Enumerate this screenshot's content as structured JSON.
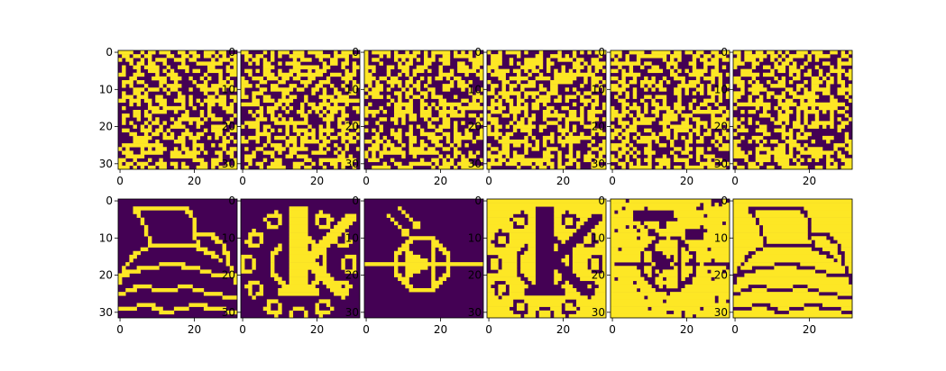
{
  "figure": {
    "colors": {
      "low": "#440154",
      "high": "#fde725",
      "axis": "#000000",
      "background": "#ffffff"
    }
  },
  "chart_data": {
    "type": "heatmap",
    "layout": {
      "rows": 2,
      "cols": 6
    },
    "grid": false,
    "image_size": [
      32,
      32
    ],
    "colormap": "viridis (binary)",
    "value_range": [
      0,
      1
    ],
    "x_ticks": [
      0,
      20
    ],
    "y_ticks": [
      0,
      10,
      20,
      30
    ],
    "x_tick_labels": [
      "0",
      "20"
    ],
    "y_tick_labels": [
      "0",
      "10",
      "20",
      "30"
    ],
    "panels": [
      {
        "row": 0,
        "col": 0,
        "kind": "noise",
        "seed": 11
      },
      {
        "row": 0,
        "col": 1,
        "kind": "noise",
        "seed": 23
      },
      {
        "row": 0,
        "col": 2,
        "kind": "noise",
        "seed": 37
      },
      {
        "row": 0,
        "col": 3,
        "kind": "noise",
        "seed": 41
      },
      {
        "row": 0,
        "col": 4,
        "kind": "noise",
        "seed": 53
      },
      {
        "row": 0,
        "col": 5,
        "kind": "noise",
        "seed": 67
      },
      {
        "row": 1,
        "col": 0,
        "kind": "pattern-hat",
        "inverted": false
      },
      {
        "row": 1,
        "col": 1,
        "kind": "pattern-gear-k",
        "inverted": false
      },
      {
        "row": 1,
        "col": 2,
        "kind": "pattern-diode",
        "inverted": false
      },
      {
        "row": 1,
        "col": 3,
        "kind": "pattern-gear-k",
        "inverted": true
      },
      {
        "row": 1,
        "col": 4,
        "kind": "pattern-noisy-diode",
        "inverted": true
      },
      {
        "row": 1,
        "col": 5,
        "kind": "pattern-hat",
        "inverted": true
      }
    ]
  }
}
